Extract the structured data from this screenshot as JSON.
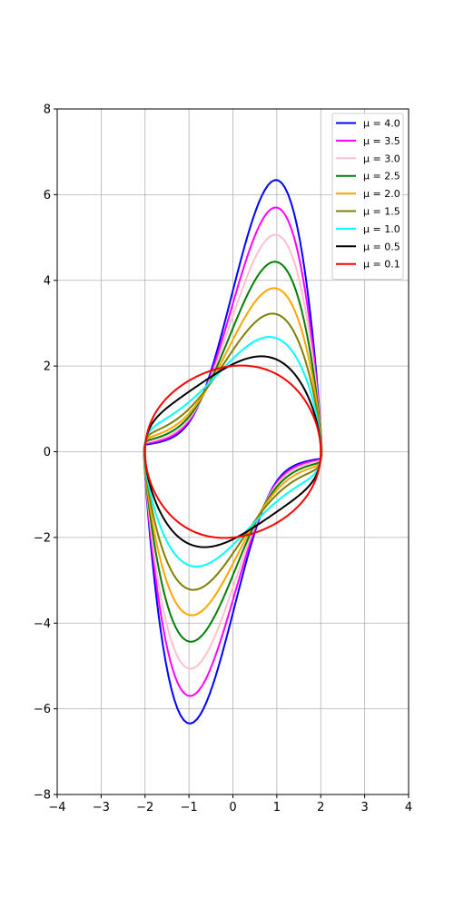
{
  "chart_data": {
    "type": "line",
    "title": "",
    "xlabel": "",
    "ylabel": "",
    "xlim": [
      -4,
      4
    ],
    "ylim": [
      -8,
      8
    ],
    "xticks": [
      -4,
      -3,
      -2,
      -1,
      0,
      1,
      2,
      3,
      4
    ],
    "yticks": [
      -8,
      -6,
      -4,
      -2,
      0,
      2,
      4,
      6,
      8
    ],
    "xtick_labels": [
      "−4",
      "−3",
      "−2",
      "−1",
      "0",
      "1",
      "2",
      "3",
      "4"
    ],
    "ytick_labels": [
      "−8",
      "−6",
      "−4",
      "−2",
      "0",
      "2",
      "4",
      "6",
      "8"
    ],
    "grid": true,
    "legend_position": "top-right",
    "series": [
      {
        "name": "μ = 4.0",
        "mu": 4.0,
        "color": "#0000ff"
      },
      {
        "name": "μ = 3.5",
        "mu": 3.5,
        "color": "#ff00ff"
      },
      {
        "name": "μ = 3.0",
        "mu": 3.0,
        "color": "#ffc0cb"
      },
      {
        "name": "μ = 2.5",
        "mu": 2.5,
        "color": "#008000"
      },
      {
        "name": "μ = 2.0",
        "mu": 2.0,
        "color": "#ffa500"
      },
      {
        "name": "μ = 1.5",
        "mu": 1.5,
        "color": "#808000"
      },
      {
        "name": "μ = 1.0",
        "mu": 1.0,
        "color": "#00ffff"
      },
      {
        "name": "μ = 0.5",
        "mu": 0.5,
        "color": "#000000"
      },
      {
        "name": "μ = 0.1",
        "mu": 0.1,
        "color": "#ff0000"
      }
    ]
  }
}
